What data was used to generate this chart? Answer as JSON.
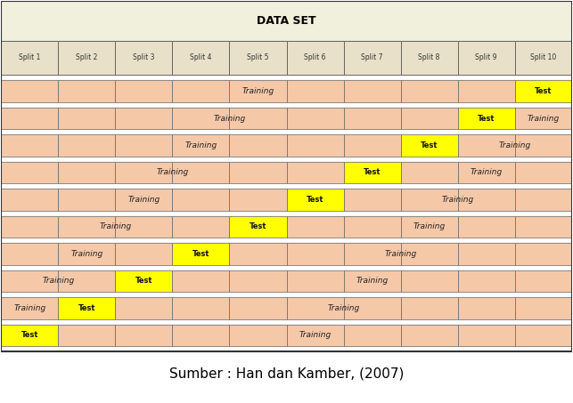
{
  "title": "DATA SET",
  "subtitle": "Sumber : Han dan Kamber, (2007)",
  "splits": [
    "Split 1",
    "Split 2",
    "Split 3",
    "Split 4",
    "Split 5",
    "Split 6",
    "Split 7",
    "Split 8",
    "Split 9",
    "Split 10"
  ],
  "rows": [
    {
      "test_splits": [
        10
      ],
      "training_splits": [
        1,
        2,
        3,
        4,
        5,
        6,
        7,
        8,
        9
      ]
    },
    {
      "test_splits": [
        9
      ],
      "training_splits": [
        1,
        2,
        3,
        4,
        5,
        6,
        7,
        8,
        10
      ]
    },
    {
      "test_splits": [
        8
      ],
      "training_splits": [
        1,
        2,
        3,
        4,
        5,
        6,
        7,
        9,
        10
      ]
    },
    {
      "test_splits": [
        7
      ],
      "training_splits": [
        1,
        2,
        3,
        4,
        5,
        6,
        8,
        9,
        10
      ]
    },
    {
      "test_splits": [
        6
      ],
      "training_splits": [
        1,
        2,
        3,
        4,
        5,
        7,
        8,
        9,
        10
      ]
    },
    {
      "test_splits": [
        5
      ],
      "training_splits": [
        1,
        2,
        3,
        4,
        6,
        7,
        8,
        9,
        10
      ]
    },
    {
      "test_splits": [
        4
      ],
      "training_splits": [
        1,
        2,
        3,
        5,
        6,
        7,
        8,
        9,
        10
      ]
    },
    {
      "test_splits": [
        3
      ],
      "training_splits": [
        1,
        2,
        4,
        5,
        6,
        7,
        8,
        9,
        10
      ]
    },
    {
      "test_splits": [
        2
      ],
      "training_splits": [
        1,
        3,
        4,
        5,
        6,
        7,
        8,
        9,
        10
      ]
    },
    {
      "test_splits": [
        1
      ],
      "training_splits": [
        2,
        3,
        4,
        5,
        6,
        7,
        8,
        9,
        10
      ]
    }
  ],
  "training_color": "#f5c8a8",
  "test_color": "#ffff00",
  "title_bg": "#f0f0dc",
  "splits_bg": "#e8e0c8",
  "splits_text_color": "#333333",
  "border_color": "#666666",
  "border_color_thick": "#333333",
  "separator_color": "#ffffff",
  "n_splits": 10,
  "training_text": "Training",
  "test_text": "Test",
  "subtitle_fontsize": 11,
  "title_fontsize": 9,
  "split_header_fontsize": 5.5,
  "row_text_fontsize": 6.5,
  "test_text_fontsize": 6
}
